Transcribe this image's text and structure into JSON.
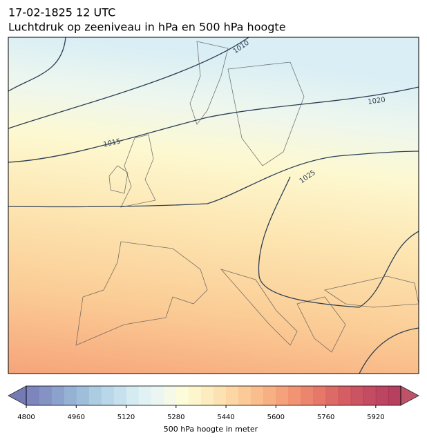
{
  "chart_data": {
    "type": "contour_map",
    "title": "17-02-1825 12 UTC",
    "subtitle": "Luchtdruk op zeeniveau in hPa en 500 hPa hoogte",
    "isobar_labels": [
      1010,
      1015,
      1020,
      1025
    ],
    "colorbar": {
      "label": "500 hPa hoogte in meter",
      "lim": [
        4800,
        6000
      ],
      "ticks": [
        4800,
        4960,
        5120,
        5280,
        5440,
        5600,
        5760,
        5920
      ],
      "colors": [
        "#6670b2",
        "#6f80ba",
        "#7891c3",
        "#82a3cc",
        "#8db3d4",
        "#9cc3dc",
        "#abd0e4",
        "#bcdcea",
        "#cde7ef",
        "#dcf0f3",
        "#e8f5f0",
        "#f2f8e4",
        "#fbfad4",
        "#fdf4c4",
        "#fde9b4",
        "#fcdda4",
        "#fbcf94",
        "#fac186",
        "#f8b27a",
        "#f6a26f",
        "#f39265",
        "#ee815c",
        "#e87055",
        "#e0604f",
        "#d6504c",
        "#cc4249",
        "#c23647",
        "#b82b46",
        "#b02445",
        "#a81f44"
      ],
      "under_color": "#5c64a8",
      "over_color": "#b3344f"
    }
  }
}
